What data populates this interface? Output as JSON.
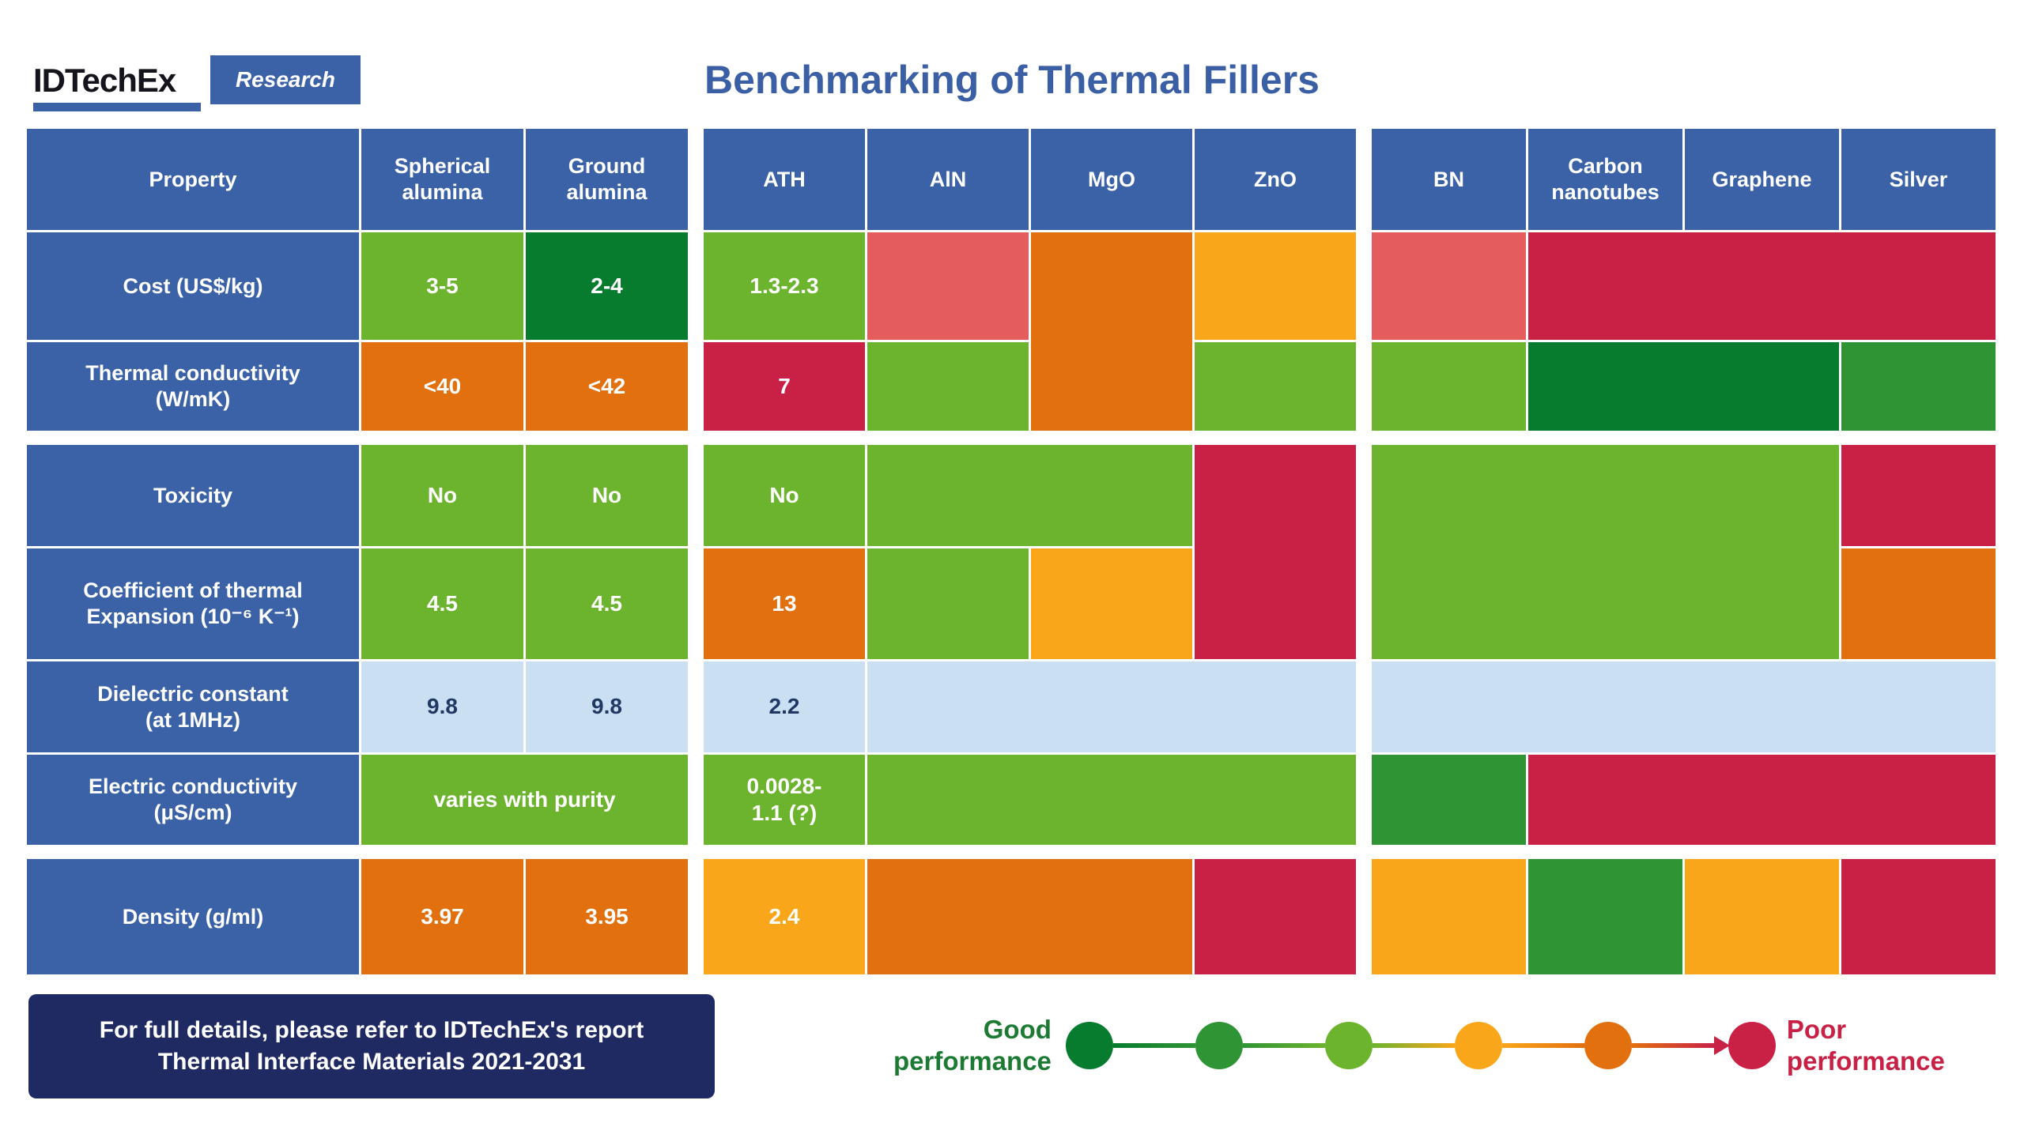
{
  "brand": {
    "logo_text": "IDTechEx",
    "logo_badge": "Research"
  },
  "title": "Benchmarking of Thermal Fillers",
  "palette": {
    "blue": "#3b61a6",
    "lightblue": "#cbdff2",
    "navy": "#1f3864",
    "lightgreen": "#6cb32e",
    "midgreen": "#2f9434",
    "darkgreen": "#077c2f",
    "amber": "#f9a61a",
    "orange": "#e2700f",
    "crimson": "#c92146",
    "salmon": "#e45c5c",
    "white": "#ffffff"
  },
  "footer_note": {
    "line1": "For full details, please refer to IDTechEx's report",
    "line2": "Thermal Interface Materials 2021-2031"
  },
  "legend": {
    "good_label": "Good\nperformance",
    "poor_label": "Poor\nperformance",
    "colors": [
      "darkgreen",
      "midgreen",
      "lightgreen",
      "amber",
      "orange",
      "crimson"
    ]
  },
  "chart_data": {
    "type": "heatmap",
    "title": "Benchmarking of Thermal Fillers",
    "columns": [
      "Spherical alumina",
      "Ground alumina",
      "ATH",
      "AlN",
      "MgO",
      "ZnO",
      "BN",
      "Carbon nanotubes",
      "Graphene",
      "Silver"
    ],
    "rows": [
      "Cost (US$/kg)",
      "Thermal conductivity (W/mK)",
      "Toxicity",
      "Coefficient of thermal Expansion (10⁻⁶ K⁻¹)",
      "Dielectric constant (at 1MHz)",
      "Electric conductivity (μS/cm)",
      "Density (g/ml)"
    ],
    "rating_scale": [
      "darkgreen=best",
      "midgreen",
      "lightgreen",
      "amber",
      "orange",
      "crimson=worst"
    ],
    "ratings": [
      [
        "lightgreen",
        "darkgreen",
        "lightgreen",
        "salmon",
        "orange",
        "amber",
        "salmon",
        "crimson",
        "crimson",
        "crimson"
      ],
      [
        "orange",
        "orange",
        "crimson",
        "lightgreen",
        "orange",
        "lightgreen",
        "lightgreen",
        "darkgreen",
        "darkgreen",
        "midgreen"
      ],
      [
        "lightgreen",
        "lightgreen",
        "lightgreen",
        "lightgreen",
        "lightgreen",
        "crimson",
        "lightgreen",
        "lightgreen",
        "lightgreen",
        "crimson"
      ],
      [
        "lightgreen",
        "lightgreen",
        "orange",
        "lightgreen",
        "amber",
        "crimson",
        "lightgreen",
        "lightgreen",
        "lightgreen",
        "orange"
      ],
      [
        "none",
        "none",
        "none",
        "none",
        "none",
        "none",
        "none",
        "none",
        "none",
        "none"
      ],
      [
        "lightgreen",
        "lightgreen",
        "lightgreen",
        "lightgreen",
        "lightgreen",
        "lightgreen",
        "midgreen",
        "crimson",
        "crimson",
        "crimson"
      ],
      [
        "orange",
        "orange",
        "amber",
        "orange",
        "orange",
        "crimson",
        "amber",
        "midgreen",
        "amber",
        "crimson"
      ]
    ],
    "values": [
      [
        "3-5",
        "2-4",
        "1.3-2.3",
        "",
        "",
        "",
        "",
        "",
        "",
        ""
      ],
      [
        "<40",
        "<42",
        "7",
        "",
        "",
        "",
        "",
        "",
        "",
        ""
      ],
      [
        "No",
        "No",
        "No",
        "",
        "",
        "",
        "",
        "",
        "",
        ""
      ],
      [
        "4.5",
        "4.5",
        "13",
        "",
        "",
        "",
        "",
        "",
        "",
        ""
      ],
      [
        "9.8",
        "9.8",
        "2.2",
        "",
        "",
        "",
        "",
        "",
        "",
        ""
      ],
      [
        "varies with purity",
        "varies with purity",
        "0.0028-\n1.1 (?)",
        "",
        "",
        "",
        "",
        "",
        "",
        ""
      ],
      [
        "3.97",
        "3.95",
        "2.4",
        "",
        "",
        "",
        "",
        "",
        "",
        ""
      ]
    ]
  },
  "table": {
    "cells": [
      {
        "r": 1,
        "c": 1,
        "bg": "blue",
        "text": "Property",
        "kind": "hdr"
      },
      {
        "r": 1,
        "c": 2,
        "bg": "blue",
        "text": "Spherical\nalumina",
        "kind": "hdr"
      },
      {
        "r": 1,
        "c": 3,
        "bg": "blue",
        "text": "Ground\nalumina",
        "kind": "hdr"
      },
      {
        "r": 1,
        "c": 5,
        "bg": "blue",
        "text": "ATH",
        "kind": "hdr"
      },
      {
        "r": 1,
        "c": 6,
        "bg": "blue",
        "text": "AlN",
        "kind": "hdr"
      },
      {
        "r": 1,
        "c": 7,
        "bg": "blue",
        "text": "MgO",
        "kind": "hdr"
      },
      {
        "r": 1,
        "c": 8,
        "bg": "blue",
        "text": "ZnO",
        "kind": "hdr"
      },
      {
        "r": 1,
        "c": 10,
        "bg": "blue",
        "text": "BN",
        "kind": "hdr"
      },
      {
        "r": 1,
        "c": 11,
        "bg": "blue",
        "text": "Carbon\nnanotubes",
        "kind": "hdr"
      },
      {
        "r": 1,
        "c": 12,
        "bg": "blue",
        "text": "Graphene",
        "kind": "hdr"
      },
      {
        "r": 1,
        "c": 13,
        "bg": "blue",
        "text": "Silver",
        "kind": "hdr"
      },
      {
        "r": 2,
        "c": 1,
        "bg": "blue",
        "text": "Cost (US$/kg)",
        "kind": "hdr"
      },
      {
        "r": 2,
        "c": 2,
        "bg": "lightgreen",
        "text": "3-5"
      },
      {
        "r": 2,
        "c": 3,
        "bg": "darkgreen",
        "text": "2-4"
      },
      {
        "r": 2,
        "c": 5,
        "bg": "lightgreen",
        "text": "1.3-2.3"
      },
      {
        "r": 2,
        "c": 6,
        "bg": "salmon",
        "text": ""
      },
      {
        "r": 2,
        "c": 7,
        "rs": 2,
        "bg": "orange",
        "text": ""
      },
      {
        "r": 2,
        "c": 8,
        "bg": "amber",
        "text": ""
      },
      {
        "r": 2,
        "c": 10,
        "bg": "salmon",
        "text": ""
      },
      {
        "r": 2,
        "c": 11,
        "cs": 3,
        "bg": "crimson",
        "text": ""
      },
      {
        "r": 3,
        "c": 1,
        "bg": "blue",
        "text": "Thermal conductivity\n(W/mK)",
        "kind": "hdr"
      },
      {
        "r": 3,
        "c": 2,
        "bg": "orange",
        "text": "<40"
      },
      {
        "r": 3,
        "c": 3,
        "bg": "orange",
        "text": "<42"
      },
      {
        "r": 3,
        "c": 5,
        "bg": "crimson",
        "text": "7"
      },
      {
        "r": 3,
        "c": 6,
        "bg": "lightgreen",
        "text": ""
      },
      {
        "r": 3,
        "c": 8,
        "bg": "lightgreen",
        "text": ""
      },
      {
        "r": 3,
        "c": 10,
        "bg": "lightgreen",
        "text": ""
      },
      {
        "r": 3,
        "c": 11,
        "cs": 2,
        "bg": "darkgreen",
        "text": ""
      },
      {
        "r": 3,
        "c": 13,
        "bg": "midgreen",
        "text": ""
      },
      {
        "r": 5,
        "c": 1,
        "bg": "blue",
        "text": "Toxicity",
        "kind": "hdr"
      },
      {
        "r": 5,
        "c": 2,
        "bg": "lightgreen",
        "text": "No"
      },
      {
        "r": 5,
        "c": 3,
        "bg": "lightgreen",
        "text": "No"
      },
      {
        "r": 5,
        "c": 5,
        "bg": "lightgreen",
        "text": "No"
      },
      {
        "r": 5,
        "c": 6,
        "cs": 2,
        "bg": "lightgreen",
        "text": ""
      },
      {
        "r": 5,
        "c": 8,
        "rs": 2,
        "bg": "crimson",
        "text": ""
      },
      {
        "r": 5,
        "c": 10,
        "cs": 3,
        "rs": 2,
        "bg": "lightgreen",
        "text": ""
      },
      {
        "r": 5,
        "c": 13,
        "bg": "crimson",
        "text": ""
      },
      {
        "r": 6,
        "c": 1,
        "bg": "blue",
        "text": "Coefficient of thermal\nExpansion (10⁻⁶ K⁻¹)",
        "kind": "hdr"
      },
      {
        "r": 6,
        "c": 2,
        "bg": "lightgreen",
        "text": "4.5"
      },
      {
        "r": 6,
        "c": 3,
        "bg": "lightgreen",
        "text": "4.5"
      },
      {
        "r": 6,
        "c": 5,
        "bg": "orange",
        "text": "13"
      },
      {
        "r": 6,
        "c": 6,
        "bg": "lightgreen",
        "text": ""
      },
      {
        "r": 6,
        "c": 7,
        "bg": "amber",
        "text": ""
      },
      {
        "r": 6,
        "c": 13,
        "bg": "orange",
        "text": ""
      },
      {
        "r": 7,
        "c": 1,
        "bg": "blue",
        "text": "Dielectric constant\n(at 1MHz)",
        "kind": "hdr"
      },
      {
        "r": 7,
        "c": 2,
        "bg": "lightblue",
        "fg": "navy",
        "text": "9.8"
      },
      {
        "r": 7,
        "c": 3,
        "bg": "lightblue",
        "fg": "navy",
        "text": "9.8"
      },
      {
        "r": 7,
        "c": 5,
        "bg": "lightblue",
        "fg": "navy",
        "text": "2.2"
      },
      {
        "r": 7,
        "c": 6,
        "cs": 3,
        "bg": "lightblue",
        "text": ""
      },
      {
        "r": 7,
        "c": 10,
        "cs": 4,
        "bg": "lightblue",
        "text": ""
      },
      {
        "r": 8,
        "c": 1,
        "bg": "blue",
        "text": "Electric conductivity\n(μS/cm)",
        "kind": "hdr"
      },
      {
        "r": 8,
        "c": 2,
        "cs": 2,
        "bg": "lightgreen",
        "text": "varies with purity"
      },
      {
        "r": 8,
        "c": 5,
        "bg": "lightgreen",
        "text": "0.0028-\n1.1 (?)"
      },
      {
        "r": 8,
        "c": 6,
        "cs": 3,
        "bg": "lightgreen",
        "text": ""
      },
      {
        "r": 8,
        "c": 10,
        "bg": "midgreen",
        "text": ""
      },
      {
        "r": 8,
        "c": 11,
        "cs": 3,
        "bg": "crimson",
        "text": ""
      },
      {
        "r": 10,
        "c": 1,
        "bg": "blue",
        "text": "Density (g/ml)",
        "kind": "hdr"
      },
      {
        "r": 10,
        "c": 2,
        "bg": "orange",
        "text": "3.97"
      },
      {
        "r": 10,
        "c": 3,
        "bg": "orange",
        "text": "3.95"
      },
      {
        "r": 10,
        "c": 5,
        "bg": "amber",
        "text": "2.4"
      },
      {
        "r": 10,
        "c": 6,
        "cs": 2,
        "bg": "orange",
        "text": ""
      },
      {
        "r": 10,
        "c": 8,
        "bg": "crimson",
        "text": ""
      },
      {
        "r": 10,
        "c": 10,
        "bg": "amber",
        "text": ""
      },
      {
        "r": 10,
        "c": 11,
        "bg": "midgreen",
        "text": ""
      },
      {
        "r": 10,
        "c": 12,
        "bg": "amber",
        "text": ""
      },
      {
        "r": 10,
        "c": 13,
        "bg": "crimson",
        "text": ""
      }
    ]
  }
}
